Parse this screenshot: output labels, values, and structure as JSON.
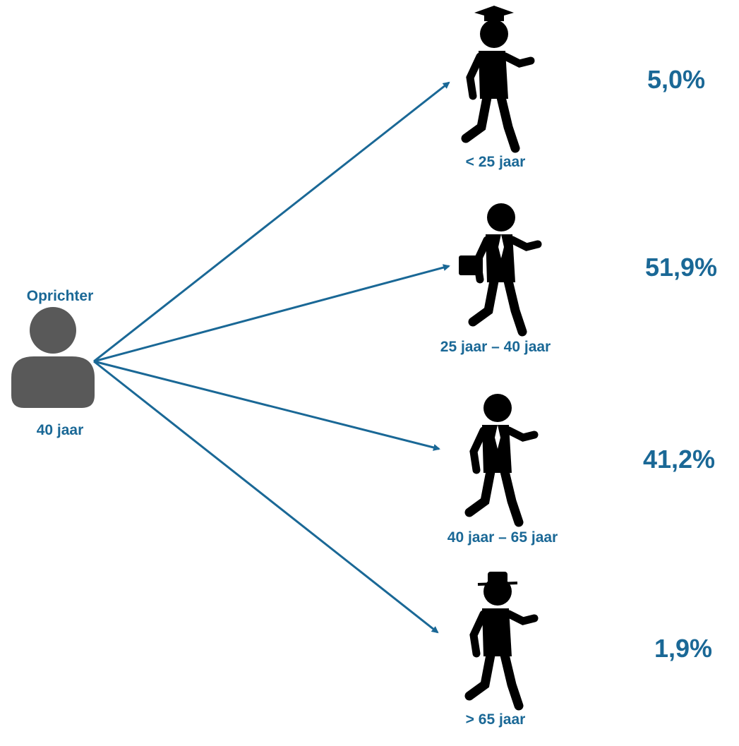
{
  "source": {
    "title": "Oprichter",
    "age": "40 jaar"
  },
  "nodes": [
    {
      "label": "< 25 jaar",
      "share": "5,0%"
    },
    {
      "label": "25 jaar – 40 jaar",
      "share": "51,9%"
    },
    {
      "label": "40 jaar – 65 jaar",
      "share": "41,2%"
    },
    {
      "label": "> 65 jaar",
      "share": "1,9%"
    }
  ]
}
